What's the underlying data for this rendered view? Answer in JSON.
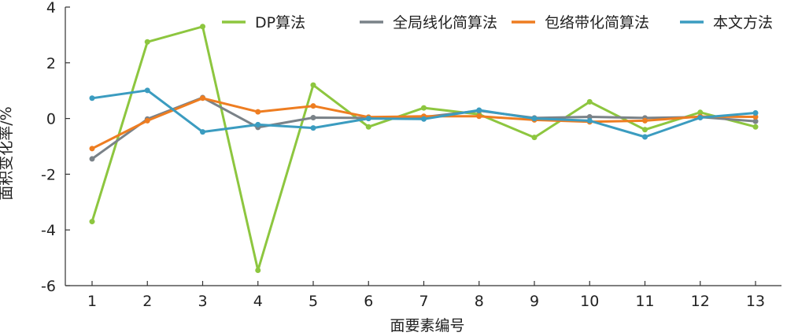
{
  "chart_data": {
    "type": "line",
    "title": "",
    "xlabel": "面要素编号",
    "ylabel": "面积变化率/%",
    "x": [
      1,
      2,
      3,
      4,
      5,
      6,
      7,
      8,
      9,
      10,
      11,
      12,
      13
    ],
    "xticks": [
      "1",
      "2",
      "3",
      "4",
      "5",
      "6",
      "7",
      "8",
      "9",
      "10",
      "11",
      "12",
      "13"
    ],
    "ylim": [
      -6,
      4
    ],
    "yticks": [
      "-6",
      "-4",
      "-2",
      "0",
      "2",
      "4"
    ],
    "grid": false,
    "legend_position": "top",
    "series": [
      {
        "name": "DP算法",
        "color": "#8dc63f",
        "values": [
          -3.7,
          2.75,
          3.3,
          -5.45,
          1.2,
          -0.3,
          0.38,
          0.15,
          -0.68,
          0.6,
          -0.4,
          0.22,
          -0.3
        ]
      },
      {
        "name": "全局线化简算法",
        "color": "#7a8288",
        "values": [
          -1.45,
          -0.02,
          0.75,
          -0.32,
          0.03,
          0.02,
          0.05,
          0.28,
          0.02,
          0.06,
          0.02,
          0.05,
          -0.1
        ]
      },
      {
        "name": "包络带化简算法",
        "color": "#ee7d21",
        "values": [
          -1.08,
          -0.08,
          0.73,
          0.24,
          0.45,
          0.05,
          0.08,
          0.08,
          -0.05,
          -0.12,
          -0.08,
          0.07,
          0.06
        ]
      },
      {
        "name": "本文方法",
        "color": "#3b9cc0",
        "values": [
          0.73,
          1.01,
          -0.48,
          -0.22,
          -0.34,
          0.0,
          -0.02,
          0.3,
          0.0,
          -0.08,
          -0.66,
          0.03,
          0.2
        ]
      }
    ]
  }
}
